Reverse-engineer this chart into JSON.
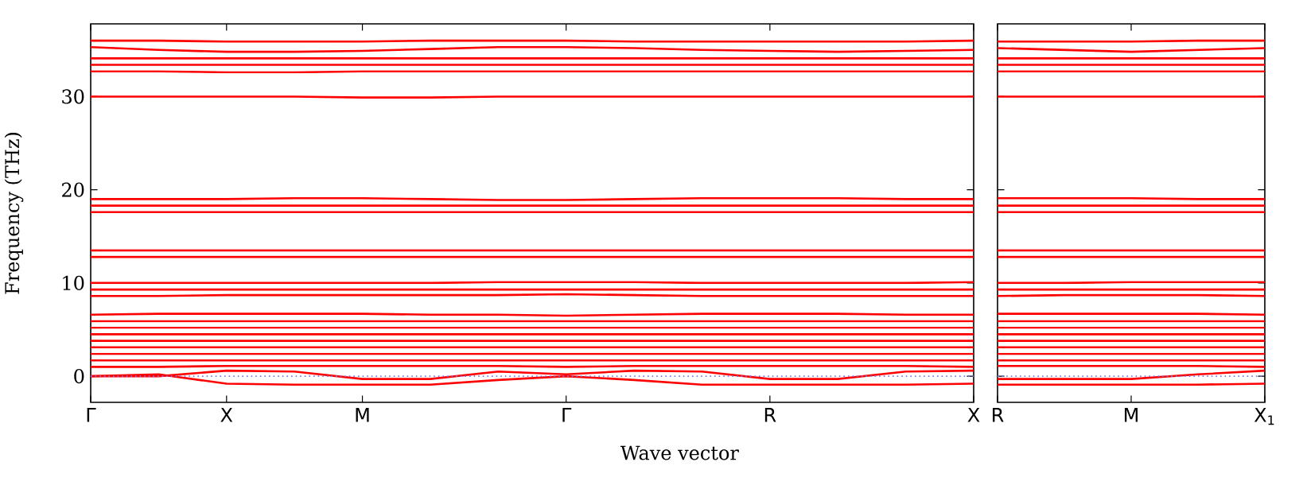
{
  "chart_data": [
    {
      "type": "line",
      "color": "#ff0000",
      "ylabel": "Frequency (THz)",
      "xlabel": "Wave vector",
      "categories": [
        "Γ",
        null,
        "X",
        null,
        "M",
        null,
        null,
        "Γ",
        null,
        null,
        "R",
        null,
        null,
        "X"
      ],
      "ylim": [
        -2.8,
        37.8
      ],
      "yticks": [
        0,
        10,
        20,
        30
      ],
      "ref_lines": [
        {
          "axis": "y",
          "value": 0,
          "color": "#7777ee",
          "line_style": "dotted"
        }
      ],
      "series": [
        {
          "values": [
            36.0,
            36.0,
            35.9,
            35.9,
            35.9,
            36.0,
            36.0,
            36.0,
            35.9,
            35.9,
            35.9,
            35.9,
            35.9,
            36.0
          ]
        },
        {
          "values": [
            35.3,
            35.0,
            34.8,
            34.8,
            34.9,
            35.1,
            35.3,
            35.3,
            35.2,
            35.0,
            34.9,
            34.8,
            34.9,
            35.0
          ]
        },
        {
          "values": [
            34.1,
            34.1,
            34.1,
            34.1,
            34.1,
            34.1,
            34.1,
            34.1,
            34.1,
            34.1,
            34.1,
            34.1,
            34.1,
            34.1
          ]
        },
        {
          "values": [
            33.4,
            33.4,
            33.4,
            33.4,
            33.4,
            33.4,
            33.4,
            33.4,
            33.4,
            33.4,
            33.4,
            33.4,
            33.4,
            33.4
          ]
        },
        {
          "values": [
            32.7,
            32.7,
            32.6,
            32.6,
            32.7,
            32.7,
            32.7,
            32.7,
            32.7,
            32.7,
            32.7,
            32.7,
            32.7,
            32.7
          ]
        },
        {
          "values": [
            30.0,
            30.0,
            30.0,
            30.0,
            29.9,
            29.9,
            30.0,
            30.0,
            30.0,
            30.0,
            30.0,
            30.0,
            30.0,
            30.0
          ]
        },
        {
          "values": [
            19.0,
            19.0,
            19.0,
            19.1,
            19.1,
            19.0,
            18.9,
            18.9,
            19.0,
            19.1,
            19.1,
            19.1,
            19.0,
            19.0
          ]
        },
        {
          "values": [
            18.3,
            18.3,
            18.3,
            18.3,
            18.3,
            18.3,
            18.3,
            18.3,
            18.3,
            18.3,
            18.3,
            18.3,
            18.3,
            18.3
          ]
        },
        {
          "values": [
            17.6,
            17.6,
            17.6,
            17.6,
            17.6,
            17.6,
            17.6,
            17.6,
            17.6,
            17.6,
            17.6,
            17.6,
            17.6,
            17.6
          ]
        },
        {
          "values": [
            13.5,
            13.5,
            13.5,
            13.5,
            13.5,
            13.5,
            13.5,
            13.5,
            13.5,
            13.5,
            13.5,
            13.5,
            13.5,
            13.5
          ]
        },
        {
          "values": [
            12.8,
            12.8,
            12.8,
            12.8,
            12.8,
            12.8,
            12.8,
            12.8,
            12.8,
            12.8,
            12.8,
            12.8,
            12.8,
            12.8
          ]
        },
        {
          "values": [
            10.0,
            10.0,
            10.0,
            10.0,
            10.0,
            10.0,
            10.1,
            10.1,
            10.1,
            10.0,
            10.0,
            10.0,
            10.0,
            10.1
          ]
        },
        {
          "values": [
            9.3,
            9.3,
            9.3,
            9.3,
            9.3,
            9.3,
            9.3,
            9.3,
            9.3,
            9.3,
            9.3,
            9.3,
            9.3,
            9.3
          ]
        },
        {
          "values": [
            8.6,
            8.6,
            8.7,
            8.7,
            8.7,
            8.7,
            8.7,
            8.8,
            8.7,
            8.6,
            8.6,
            8.6,
            8.6,
            8.6
          ]
        },
        {
          "values": [
            6.6,
            6.7,
            6.7,
            6.7,
            6.7,
            6.6,
            6.6,
            6.5,
            6.6,
            6.7,
            6.7,
            6.7,
            6.6,
            6.6
          ]
        },
        {
          "values": [
            5.9,
            5.9,
            5.9,
            5.9,
            5.9,
            5.9,
            5.9,
            5.9,
            5.9,
            5.9,
            5.9,
            5.9,
            5.9,
            5.9
          ]
        },
        {
          "values": [
            5.2,
            5.2,
            5.2,
            5.2,
            5.2,
            5.2,
            5.2,
            5.2,
            5.2,
            5.2,
            5.2,
            5.2,
            5.2,
            5.2
          ]
        },
        {
          "values": [
            4.5,
            4.5,
            4.5,
            4.5,
            4.5,
            4.5,
            4.5,
            4.5,
            4.5,
            4.5,
            4.5,
            4.5,
            4.5,
            4.5
          ]
        },
        {
          "values": [
            3.8,
            3.8,
            3.8,
            3.8,
            3.8,
            3.8,
            3.8,
            3.8,
            3.8,
            3.8,
            3.8,
            3.8,
            3.8,
            3.8
          ]
        },
        {
          "values": [
            3.1,
            3.1,
            3.1,
            3.1,
            3.1,
            3.1,
            3.1,
            3.1,
            3.1,
            3.1,
            3.1,
            3.1,
            3.1,
            3.1
          ]
        },
        {
          "values": [
            2.4,
            2.4,
            2.4,
            2.4,
            2.4,
            2.4,
            2.4,
            2.4,
            2.4,
            2.4,
            2.4,
            2.4,
            2.4,
            2.4
          ]
        },
        {
          "values": [
            1.7,
            1.7,
            1.7,
            1.7,
            1.7,
            1.7,
            1.7,
            1.7,
            1.7,
            1.7,
            1.7,
            1.7,
            1.7,
            1.7
          ]
        },
        {
          "values": [
            1.0,
            1.0,
            1.1,
            1.1,
            1.1,
            1.1,
            1.1,
            1.0,
            1.1,
            1.1,
            1.1,
            1.1,
            1.1,
            1.0
          ]
        },
        {
          "values": [
            0,
            0.2,
            -0.8,
            -0.9,
            -0.9,
            -0.9,
            -0.4,
            0,
            -0.4,
            -0.9,
            -0.9,
            -0.9,
            -0.9,
            -0.8
          ]
        },
        {
          "values": [
            0,
            0,
            0.6,
            0.5,
            -0.3,
            -0.3,
            0.5,
            0.2,
            0.6,
            0.5,
            -0.3,
            -0.3,
            0.5,
            0.6
          ]
        }
      ]
    },
    {
      "type": "line",
      "color": "#ff0000",
      "categories": [
        "R",
        null,
        "M",
        null,
        "X$_{1}$"
      ],
      "ylim": [
        -2.8,
        37.8
      ],
      "yticks": [
        0,
        10,
        20,
        30
      ],
      "tick_labels": "x",
      "ref_lines": [
        {
          "axis": "y",
          "value": 0,
          "color": "#7777ee",
          "line_style": "dotted"
        }
      ],
      "series": [
        {
          "values": [
            35.9,
            35.9,
            35.9,
            36.0,
            36.0
          ]
        },
        {
          "values": [
            35.2,
            35.0,
            34.8,
            35.0,
            35.2
          ]
        },
        {
          "values": [
            34.1,
            34.1,
            34.1,
            34.1,
            34.1
          ]
        },
        {
          "values": [
            33.4,
            33.4,
            33.4,
            33.4,
            33.4
          ]
        },
        {
          "values": [
            32.7,
            32.7,
            32.7,
            32.7,
            32.7
          ]
        },
        {
          "values": [
            30.0,
            30.0,
            30.0,
            30.0,
            30.0
          ]
        },
        {
          "values": [
            19.1,
            19.1,
            19.1,
            19.0,
            19.0
          ]
        },
        {
          "values": [
            18.3,
            18.3,
            18.3,
            18.3,
            18.3
          ]
        },
        {
          "values": [
            17.6,
            17.6,
            17.6,
            17.6,
            17.6
          ]
        },
        {
          "values": [
            13.5,
            13.5,
            13.5,
            13.5,
            13.5
          ]
        },
        {
          "values": [
            12.8,
            12.8,
            12.8,
            12.8,
            12.8
          ]
        },
        {
          "values": [
            10.0,
            10.0,
            10.1,
            10.1,
            10.1
          ]
        },
        {
          "values": [
            9.3,
            9.3,
            9.3,
            9.3,
            9.3
          ]
        },
        {
          "values": [
            8.6,
            8.7,
            8.7,
            8.7,
            8.6
          ]
        },
        {
          "values": [
            6.7,
            6.7,
            6.7,
            6.7,
            6.6
          ]
        },
        {
          "values": [
            5.9,
            5.9,
            5.9,
            5.9,
            5.9
          ]
        },
        {
          "values": [
            5.2,
            5.2,
            5.2,
            5.2,
            5.2
          ]
        },
        {
          "values": [
            4.5,
            4.5,
            4.5,
            4.5,
            4.5
          ]
        },
        {
          "values": [
            3.8,
            3.8,
            3.8,
            3.8,
            3.8
          ]
        },
        {
          "values": [
            3.1,
            3.1,
            3.1,
            3.1,
            3.1
          ]
        },
        {
          "values": [
            2.4,
            2.4,
            2.4,
            2.4,
            2.4
          ]
        },
        {
          "values": [
            1.7,
            1.7,
            1.7,
            1.7,
            1.7
          ]
        },
        {
          "values": [
            1.1,
            1.1,
            1.1,
            1.1,
            1.0
          ]
        },
        {
          "values": [
            -0.9,
            -0.9,
            -0.9,
            -0.9,
            -0.8
          ]
        },
        {
          "values": [
            -0.3,
            -0.3,
            -0.3,
            0.2,
            0.6
          ]
        }
      ]
    }
  ]
}
